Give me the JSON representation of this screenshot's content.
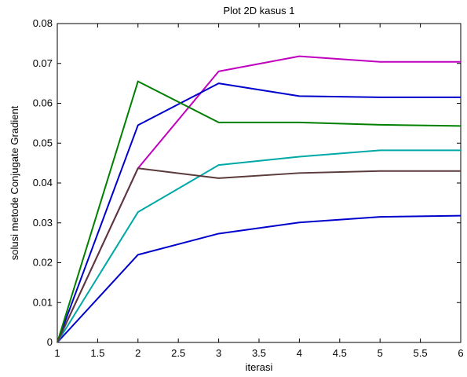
{
  "chart_data": {
    "type": "line",
    "title": "Plot 2D kasus 1",
    "xlabel": "iterasi",
    "ylabel": "solusi metode Conjugate Gradient",
    "xlim": [
      1,
      6
    ],
    "ylim": [
      0,
      0.08
    ],
    "grid": false,
    "x": [
      1,
      2,
      3,
      4,
      5,
      6
    ],
    "x_ticks": [
      1,
      1.5,
      2,
      2.5,
      3,
      3.5,
      4,
      4.5,
      5,
      5.5,
      6
    ],
    "x_tick_labels": [
      "1",
      "1.5",
      "2",
      "2.5",
      "3",
      "3.5",
      "4",
      "4.5",
      "5",
      "5.5",
      "6"
    ],
    "y_ticks": [
      0,
      0.01,
      0.02,
      0.03,
      0.04,
      0.05,
      0.06,
      0.07,
      0.08
    ],
    "y_tick_labels": [
      "0",
      "0.01",
      "0.02",
      "0.03",
      "0.04",
      "0.05",
      "0.06",
      "0.07",
      "0.08"
    ],
    "series": [
      {
        "color": "#0000cc",
        "values": [
          0,
          0.022,
          0.0273,
          0.0301,
          0.0315,
          0.0318
        ]
      },
      {
        "color": "#00a8a8",
        "values": [
          0,
          0.0327,
          0.0445,
          0.0466,
          0.0482,
          0.0482
        ]
      },
      {
        "color": "#bf00bf",
        "values": [
          0,
          0.0437,
          0.068,
          0.0718,
          0.0704,
          0.0704
        ]
      },
      {
        "color": "#0000cc",
        "values": [
          0,
          0.0545,
          0.065,
          0.0618,
          0.0615,
          0.0615
        ]
      },
      {
        "color": "#008000",
        "values": [
          0,
          0.0655,
          0.0552,
          0.0552,
          0.0546,
          0.0543
        ]
      },
      {
        "color": "#5a3a3a",
        "values": [
          0,
          0.0437,
          0.0412,
          0.0425,
          0.043,
          0.043
        ]
      }
    ]
  }
}
